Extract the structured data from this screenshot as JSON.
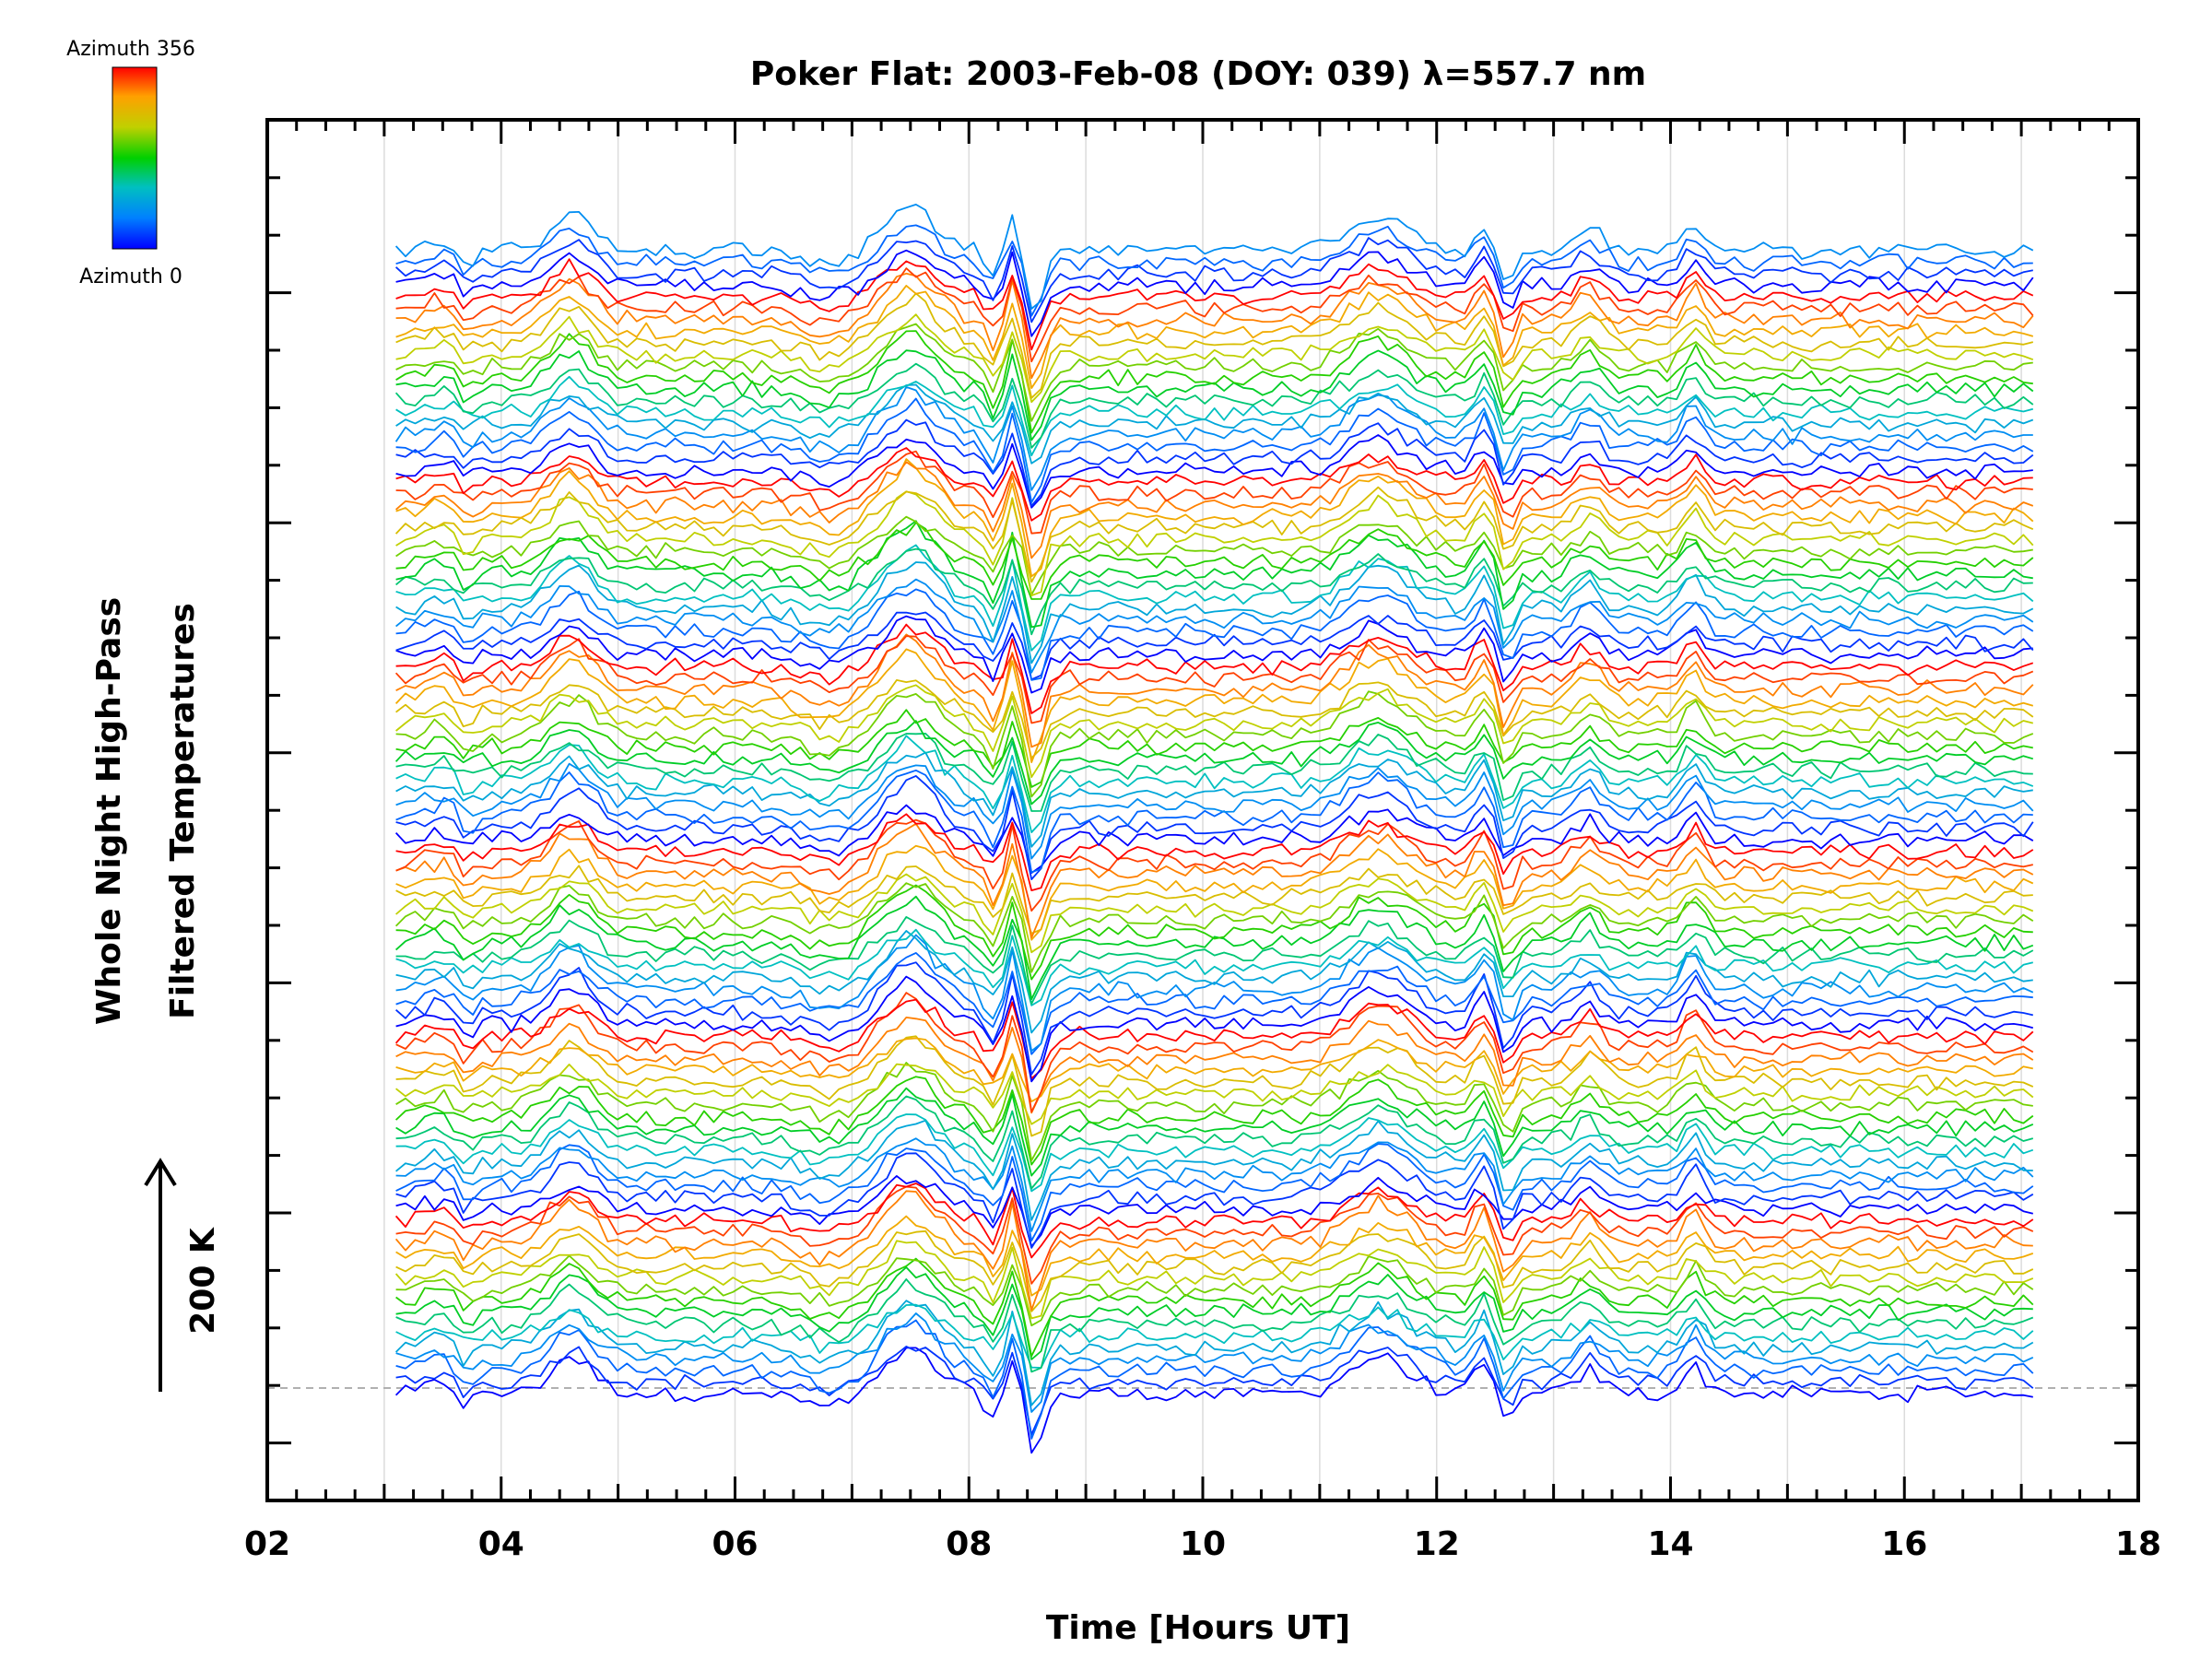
{
  "chart_data": {
    "type": "line",
    "title": "Poker Flat: 2003-Feb-08 (DOY: 039) λ=557.7 nm",
    "xlabel": "Time [Hours UT]",
    "ylabel_line1": "Whole Night High-Pass",
    "ylabel_line2": "Filtered Temperatures",
    "scale_label": "200 K",
    "colorbar": {
      "top_label": "Azimuth 356",
      "bottom_label": "Azimuth 0"
    },
    "xlim": [
      2,
      18
    ],
    "x_ticks": [
      "02",
      "04",
      "06",
      "08",
      "10",
      "12",
      "14",
      "16",
      "18"
    ],
    "x_tick_values": [
      2,
      4,
      6,
      8,
      10,
      12,
      14,
      16,
      18
    ],
    "data_time_range": [
      3.1,
      17.1
    ],
    "grid": "vertical",
    "legend": "colorbar top-left",
    "series_count": 100,
    "color_scale": [
      "#0000ff",
      "#0080ff",
      "#00c0c0",
      "#00d000",
      "#c0d000",
      "#ffa000",
      "#ff0000"
    ],
    "features": {
      "warm_peaks_hours_ut": [
        4.6,
        7.5,
        8.4,
        11.5,
        12.4,
        13.3,
        14.2
      ],
      "cold_dips_hours_ut": [
        8.2,
        8.55,
        12.6
      ]
    }
  }
}
